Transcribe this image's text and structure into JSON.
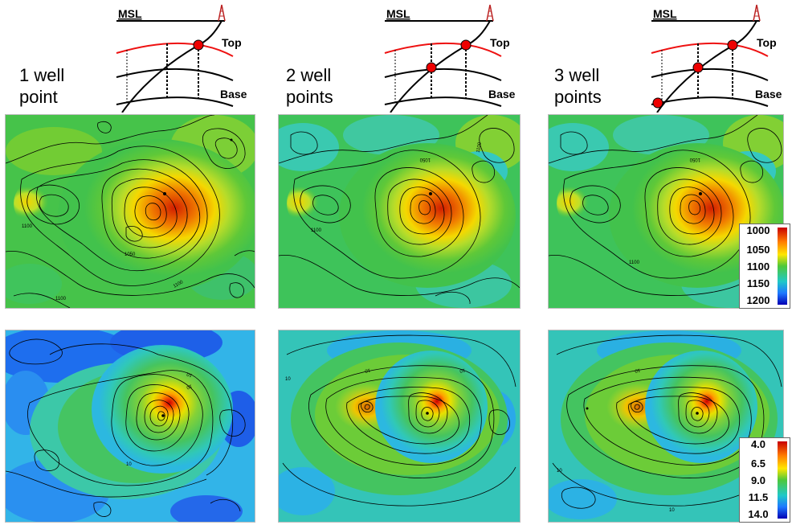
{
  "columns": [
    {
      "label_line1": "1 well",
      "label_line2": "point",
      "msl": "MSL",
      "top": "Top",
      "base": "Base"
    },
    {
      "label_line1": "2 well",
      "label_line2": "points",
      "msl": "MSL",
      "top": "Top",
      "base": "Base"
    },
    {
      "label_line1": "3 well",
      "label_line2": "points",
      "msl": "MSL",
      "top": "Top",
      "base": "Base"
    }
  ],
  "depth_colorbar": {
    "ticks": [
      "1000",
      "1050",
      "1100",
      "1150",
      "1200"
    ]
  },
  "uncertainty_colorbar": {
    "ticks": [
      "4.0",
      "6.5",
      "9.0",
      "11.5",
      "14.0"
    ]
  },
  "contour_labels": {
    "m1a": "1050",
    "m1b": "1100",
    "m1c": "1100",
    "m1d": "1100",
    "m2a": "1050",
    "m2b": "1100",
    "m2c": "1100",
    "m3a": "1050",
    "m3b": "1100",
    "u1a": "10",
    "u1b": "10",
    "u1c": "10",
    "u2a": "10",
    "u2b": "10",
    "u2c": "10",
    "u3a": "10",
    "u3b": "10",
    "u3c": "10"
  },
  "colors": {
    "horizon_top": "#e11",
    "well_point": "#e00",
    "map_contour": "#000"
  }
}
